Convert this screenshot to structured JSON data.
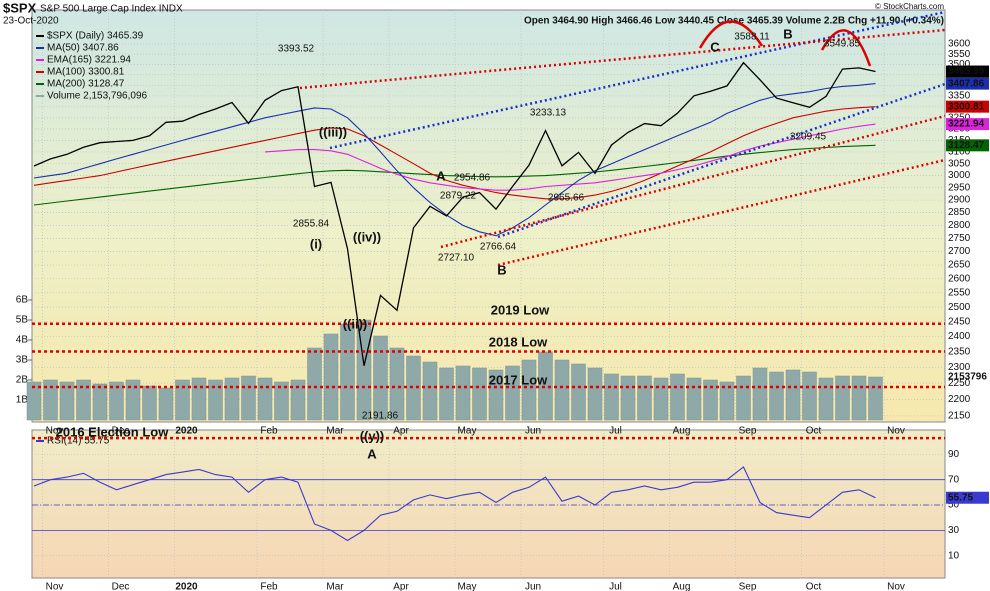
{
  "chart_data": [
    {
      "type": "line",
      "log": true,
      "title": "$SPX",
      "subtitle": "S&P 500 Large Cap Index INDX",
      "date": "23-Oct-2020",
      "quote": "Open 3464.90 High 3466.46 Low 3440.45 Close 3465.39 Volume 2.2B Chg +11.90 (+0.34%)",
      "credit": "© StockCharts.com",
      "categories": [
        null,
        "Nov",
        null,
        null,
        null,
        "Dec",
        null,
        null,
        null,
        "2020",
        null,
        null,
        null,
        null,
        "Feb",
        null,
        null,
        null,
        "Mar",
        null,
        null,
        null,
        "Apr",
        null,
        null,
        null,
        "May",
        null,
        null,
        null,
        "Jun",
        null,
        null,
        null,
        null,
        "Jul",
        null,
        null,
        null,
        "Aug",
        null,
        null,
        null,
        "Sep",
        null,
        null,
        null,
        "Oct",
        null,
        null,
        null,
        null,
        "Nov",
        null,
        null,
        null
      ],
      "ylim": [
        2132,
        3774
      ],
      "yticks": [
        2150,
        2200,
        2250,
        2300,
        2350,
        2400,
        2450,
        2500,
        2550,
        2600,
        2650,
        2700,
        2750,
        2800,
        2850,
        2900,
        2950,
        3000,
        3050,
        3100,
        3150,
        3200,
        3250,
        3300,
        3350,
        3400,
        3450,
        3500,
        3550,
        3600
      ],
      "y2lim": [
        -0.1,
        20.5
      ],
      "y2ticks": [
        {
          "value": 1,
          "label": "1B"
        },
        {
          "value": 2,
          "label": "2B"
        },
        {
          "value": 3,
          "label": "3B"
        },
        {
          "value": 4,
          "label": "4B"
        },
        {
          "value": 5,
          "label": "5B"
        },
        {
          "value": 6,
          "label": "6B"
        }
      ],
      "grid": true,
      "series": [
        {
          "name": "MA(200) 3128.47",
          "color": "#006400",
          "last": 3128.47,
          "values": [
            2880,
            2888,
            2896,
            2904,
            2912,
            2920,
            2928,
            2936,
            2944,
            2952,
            2960,
            2968,
            2976,
            2984,
            2992,
            3000,
            3008,
            3015,
            3020,
            3022,
            3020,
            3016,
            3012,
            3008,
            3004,
            3000,
            2998,
            2996,
            2995,
            2996,
            2998,
            3000,
            3005,
            3010,
            3015,
            3022,
            3030,
            3038,
            3046,
            3055,
            3064,
            3073,
            3082,
            3090,
            3097,
            3104,
            3110,
            3115,
            3119,
            3123,
            3126,
            3128.47,
            null,
            null,
            null,
            null
          ]
        },
        {
          "name": "MA(100) 3300.81",
          "color": "#cc0000",
          "last": 3300.81,
          "values": [
            2960,
            2970,
            2980,
            2990,
            3000,
            3015,
            3030,
            3045,
            3060,
            3075,
            3090,
            3105,
            3120,
            3135,
            3150,
            3165,
            3180,
            3195,
            3205,
            3200,
            3170,
            3130,
            3090,
            3050,
            3010,
            2980,
            2960,
            2945,
            2930,
            2920,
            2912,
            2905,
            2905,
            2910,
            2920,
            2935,
            2955,
            2980,
            3010,
            3040,
            3070,
            3100,
            3135,
            3170,
            3200,
            3225,
            3250,
            3265,
            3280,
            3290,
            3296,
            3300.81,
            null,
            null,
            null,
            null
          ]
        },
        {
          "name": "EMA(165) 3221.94",
          "color": "#e020e0",
          "last": 3221.94,
          "values": [
            null,
            null,
            null,
            null,
            null,
            null,
            null,
            null,
            null,
            null,
            null,
            null,
            null,
            null,
            3100,
            3105,
            3110,
            3110,
            3105,
            3090,
            3060,
            3030,
            3005,
            2985,
            2970,
            2960,
            2950,
            2945,
            2940,
            2940,
            2945,
            2955,
            2960,
            2965,
            2970,
            2980,
            2990,
            3000,
            3010,
            3025,
            3040,
            3060,
            3080,
            3105,
            3125,
            3140,
            3155,
            3170,
            3185,
            3200,
            3212,
            3221.94,
            null,
            null,
            null,
            null
          ]
        },
        {
          "name": "MA(50) 3407.86",
          "color": "#1a2fb0",
          "last": 3407.86,
          "values": [
            2990,
            3000,
            3010,
            3030,
            3050,
            3070,
            3090,
            3110,
            3130,
            3150,
            3170,
            3190,
            3210,
            3230,
            3250,
            3265,
            3280,
            3295,
            3290,
            3250,
            3180,
            3100,
            3020,
            2950,
            2890,
            2840,
            2800,
            2775,
            2760,
            2790,
            2830,
            2880,
            2930,
            2980,
            3020,
            3050,
            3080,
            3110,
            3140,
            3170,
            3200,
            3230,
            3270,
            3300,
            3330,
            3350,
            3360,
            3370,
            3385,
            3395,
            3400,
            3407.86,
            null,
            null,
            null,
            null
          ]
        },
        {
          "name": "$SPX (Daily) 3465.39",
          "color": "#000000",
          "last": 3465.39,
          "values": [
            3040,
            3070,
            3090,
            3120,
            3140,
            3145,
            3150,
            3170,
            3230,
            3235,
            3265,
            3290,
            3320,
            3225,
            3330,
            3375,
            3393,
            2955,
            2972,
            2711,
            2305,
            2541,
            2489,
            2790,
            2875,
            2837,
            2912,
            2930,
            2864,
            2955,
            3044,
            3193,
            3041,
            3098,
            3009,
            3130,
            3185,
            3224,
            3215,
            3271,
            3351,
            3372,
            3397,
            3508,
            3426,
            3340,
            3319,
            3298,
            3348,
            3477,
            3483,
            3465.39,
            null,
            null,
            null,
            null
          ]
        },
        {
          "name": "Volume 2,153,796,096",
          "type": "bar",
          "axis": "y2",
          "color": "#8fa9a9",
          "last": {
            "value": 2.153796,
            "label": "2153796"
          },
          "values": [
            1.9,
            2.0,
            1.9,
            2.0,
            1.8,
            1.9,
            2.0,
            1.7,
            1.6,
            2.0,
            2.1,
            2.0,
            2.1,
            2.2,
            2.1,
            1.9,
            2.0,
            3.6,
            4.3,
            4.8,
            5.0,
            4.2,
            3.6,
            3.2,
            2.9,
            2.6,
            2.7,
            2.6,
            2.5,
            2.7,
            3.0,
            3.4,
            3.0,
            2.8,
            2.6,
            2.3,
            2.2,
            2.2,
            2.1,
            2.3,
            2.1,
            2.0,
            1.9,
            2.2,
            2.6,
            2.4,
            2.5,
            2.4,
            2.1,
            2.2,
            2.2,
            2.15,
            null,
            null,
            null,
            null
          ]
        }
      ],
      "levels": [
        {
          "label": "2019 Low",
          "value": 2443
        },
        {
          "label": "2018 Low",
          "value": 2351
        },
        {
          "label": "2017 Low",
          "value": 2238
        },
        {
          "label": "2016 Election Low",
          "value": 2085
        }
      ],
      "price_labels": [
        3393.52,
        2855.84,
        2191.86,
        {
          "value": 2727.1,
          "label": "2727.10"
        },
        2879.22,
        2954.86,
        2766.64,
        3233.13,
        2965.66,
        3588.11,
        3209.45,
        3549.85
      ],
      "wave_labels": [
        "((iii))",
        "(i)",
        "((iv))",
        "((ii))",
        "((y))",
        "A",
        "A",
        "B",
        "C",
        "B"
      ]
    },
    {
      "type": "line",
      "categories": [
        null,
        "Nov",
        null,
        null,
        null,
        "Dec",
        null,
        null,
        null,
        "2020",
        null,
        null,
        null,
        null,
        "Feb",
        null,
        null,
        null,
        "Mar",
        null,
        null,
        null,
        "Apr",
        null,
        null,
        null,
        "May",
        null,
        null,
        null,
        "Jun",
        null,
        null,
        null,
        null,
        "Jul",
        null,
        null,
        null,
        "Aug",
        null,
        null,
        null,
        "Sep",
        null,
        null,
        null,
        "Oct",
        null,
        null,
        null,
        null,
        "Nov",
        null,
        null,
        null
      ],
      "ylim": [
        -7.6,
        109.2
      ],
      "yticks": [
        10,
        30,
        50,
        70,
        90
      ],
      "bands": [
        30,
        70
      ],
      "midline": 50,
      "series": [
        {
          "name": "RSI(14) 55.75",
          "color": "#3a3ad0",
          "last": 55.75,
          "values": [
            65,
            70,
            72,
            75,
            68,
            62,
            66,
            70,
            74,
            76,
            78,
            74,
            72,
            60,
            70,
            72,
            68,
            35,
            30,
            22,
            30,
            42,
            45,
            54,
            58,
            55,
            58,
            60,
            52,
            60,
            64,
            72,
            53,
            57,
            50,
            60,
            62,
            65,
            62,
            64,
            68,
            68,
            70,
            80,
            52,
            44,
            42,
            40,
            50,
            60,
            62,
            55.75,
            null,
            null,
            null,
            null
          ]
        }
      ]
    }
  ]
}
